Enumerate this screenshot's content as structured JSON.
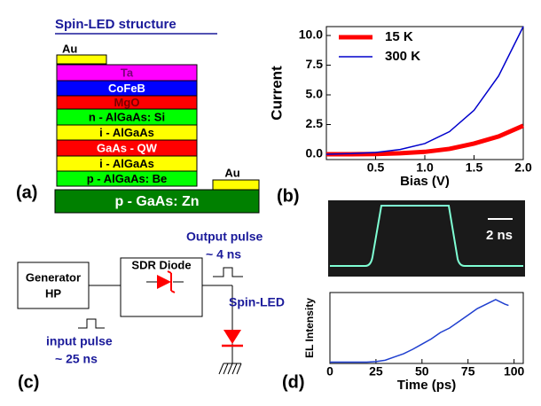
{
  "panel_labels": [
    "(a)",
    "(b)",
    "(c)",
    "(d)"
  ],
  "structure": {
    "title": "Spin-LED structure",
    "layers": [
      {
        "label": "Au",
        "color": "#ffff00",
        "text_color": "#000000"
      },
      {
        "label": "Ta",
        "color": "#ff00ff",
        "text_color": "#7a007a"
      },
      {
        "label": "CoFeB",
        "color": "#0000ff",
        "text_color": "#ffffff"
      },
      {
        "label": "MgO",
        "color": "#ff0000",
        "text_color": "#7a0000"
      },
      {
        "label": "n - AlGaAs: Si",
        "color": "#00ff00",
        "text_color": "#000000"
      },
      {
        "label": "i - AlGaAs",
        "color": "#ffff00",
        "text_color": "#000000"
      },
      {
        "label": "GaAs - QW",
        "color": "#ff0000",
        "text_color": "#ffffff"
      },
      {
        "label": "i - AlGaAs",
        "color": "#ffff00",
        "text_color": "#000000"
      },
      {
        "label": "p - AlGaAs: Be",
        "color": "#00ff00",
        "text_color": "#000000"
      },
      {
        "label": "Au",
        "color": "#ffff00",
        "text_color": "#000000"
      },
      {
        "label": "p - GaAs: Zn",
        "color": "#008000",
        "text_color": "#ffffff"
      }
    ]
  },
  "circuit": {
    "generator": [
      "Generator",
      "HP"
    ],
    "diode": "SDR Diode",
    "output_pulse": [
      "Output pulse",
      "~ 4 ns"
    ],
    "spin_led": "Spin-LED",
    "input_pulse": [
      "input pulse",
      "~ 25 ns"
    ]
  },
  "scope": {
    "label": "2 ns"
  },
  "chart_data": [
    {
      "type": "line",
      "xlabel": "Bias (V)",
      "ylabel": "Current",
      "xlim": [
        0,
        2
      ],
      "ylim": [
        -0.45,
        10.75
      ],
      "xticks": [
        0.5,
        {
          "value": 1,
          "label": "1.0"
        },
        1.5,
        {
          "value": 2,
          "label": "2.0"
        }
      ],
      "yticks": [
        {
          "value": 0,
          "label": "0.0"
        },
        2.5,
        {
          "value": 5,
          "label": "5.0"
        },
        7.5,
        {
          "value": 10,
          "label": "10.0"
        }
      ],
      "x": [
        0,
        0.25,
        0.5,
        0.75,
        1,
        1.25,
        1.5,
        1.75,
        2
      ],
      "series": [
        {
          "name": "15 K",
          "color": "#ff0000",
          "line_width": 5,
          "values": [
            0,
            0,
            0.02,
            0.08,
            0.2,
            0.45,
            0.9,
            1.5,
            2.4
          ]
        },
        {
          "name": "300 K",
          "color": "#0000cc",
          "line_width": 1.5,
          "values": [
            0,
            0.05,
            0.15,
            0.4,
            0.9,
            1.9,
            3.7,
            6.6,
            10.75
          ]
        }
      ],
      "legend": "upper-left"
    },
    {
      "type": "line",
      "xlabel": "Time (ps)",
      "ylabel": "EL Intensity",
      "xlim": [
        0,
        105
      ],
      "ylim": [
        0,
        1.1
      ],
      "xticks": [
        0,
        25,
        50,
        75,
        100
      ],
      "x": [
        0,
        5,
        10,
        15,
        20,
        25,
        30,
        35,
        40,
        45,
        50,
        55,
        60,
        65,
        70,
        75,
        80,
        85,
        90,
        95,
        97
      ],
      "series": [
        {
          "color": "#1f3fcf",
          "line_width": 1.5,
          "values": [
            0.02,
            0.02,
            0.02,
            0.02,
            0.02,
            0.03,
            0.05,
            0.1,
            0.15,
            0.22,
            0.3,
            0.38,
            0.48,
            0.55,
            0.65,
            0.75,
            0.85,
            0.92,
            0.99,
            0.92,
            0.9
          ]
        }
      ]
    }
  ]
}
